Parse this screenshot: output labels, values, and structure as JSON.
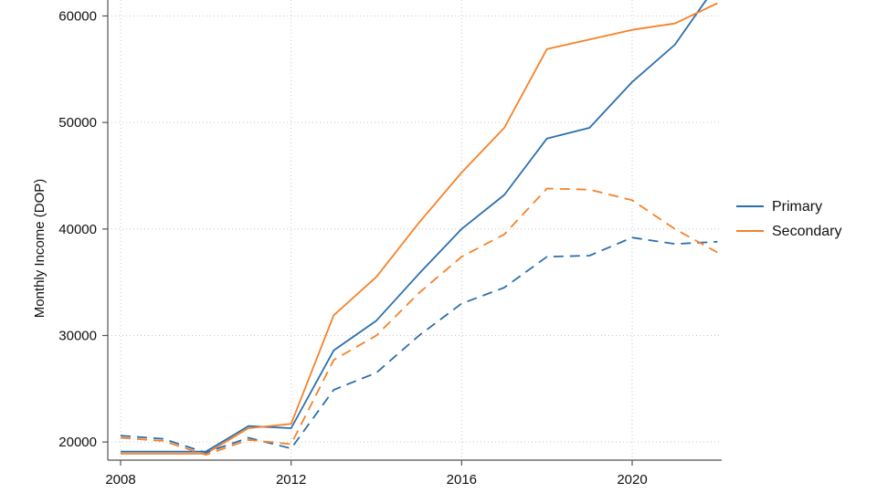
{
  "chart_data": {
    "type": "line",
    "title": "",
    "xlabel": "",
    "ylabel": "Monthly Income (DOP)",
    "xlim": [
      2007.7,
      2022.1
    ],
    "ylim": [
      18300,
      61500
    ],
    "x_ticks": [
      2008,
      2012,
      2016,
      2020
    ],
    "y_ticks": [
      20000,
      30000,
      40000,
      50000,
      60000
    ],
    "grid": true,
    "legend_position": "right",
    "colors": {
      "Primary": "#2c6fad",
      "Secondary": "#f5822a"
    },
    "x": [
      2008,
      2009,
      2010,
      2011,
      2012,
      2013,
      2014,
      2015,
      2016,
      2017,
      2018,
      2019,
      2020,
      2021,
      2022
    ],
    "series": [
      {
        "name": "Primary",
        "style": "solid",
        "color": "#2c6fad",
        "values": [
          19100,
          19100,
          19100,
          21500,
          21300,
          28600,
          31400,
          35800,
          40000,
          43200,
          48500,
          49500,
          53800,
          57300,
          63000
        ]
      },
      {
        "name": "Secondary",
        "style": "solid",
        "color": "#f5822a",
        "values": [
          18900,
          18900,
          18900,
          21300,
          21700,
          31900,
          35500,
          40600,
          45300,
          49500,
          56900,
          57800,
          58700,
          59300,
          61200
        ]
      },
      {
        "name": "Primary",
        "style": "dashed",
        "color": "#2c6fad",
        "values": [
          20600,
          20300,
          19000,
          20400,
          19400,
          24900,
          26500,
          30000,
          33000,
          34500,
          37400,
          37500,
          39200,
          38600,
          38800
        ]
      },
      {
        "name": "Secondary",
        "style": "dashed",
        "color": "#f5822a",
        "values": [
          20400,
          20100,
          18800,
          20200,
          19800,
          27700,
          30000,
          34000,
          37400,
          39500,
          43800,
          43700,
          42700,
          40000,
          37800
        ]
      }
    ],
    "legend": [
      {
        "label": "Primary",
        "color": "#2c6fad"
      },
      {
        "label": "Secondary",
        "color": "#f5822a"
      }
    ]
  }
}
